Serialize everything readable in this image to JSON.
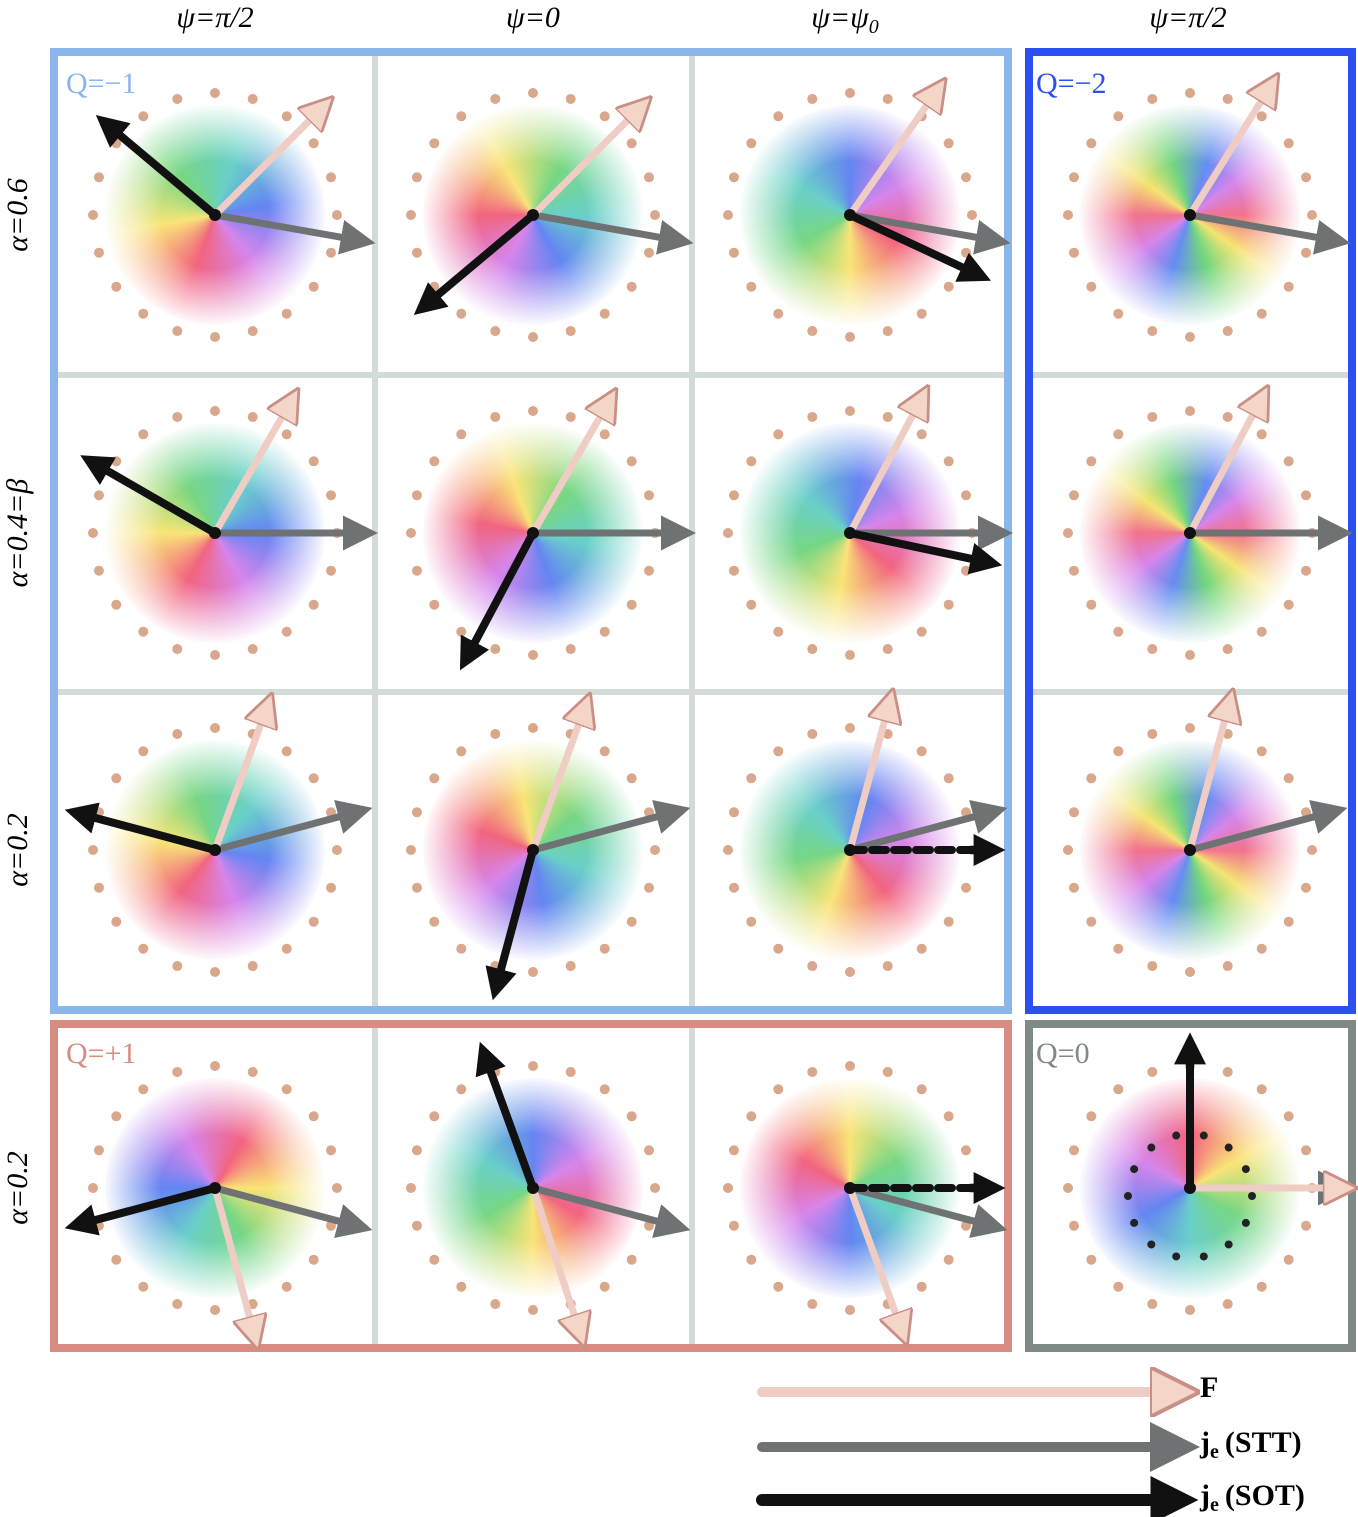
{
  "column_headers": [
    {
      "text": "ψ=π/2"
    },
    {
      "text": "ψ=0"
    },
    {
      "text": "ψ=ψ",
      "subscript": "0"
    },
    {
      "text": "ψ=π/2"
    }
  ],
  "row_labels": [
    "α=0.6",
    "α=0.4=β",
    "α=0.2",
    "α=0.2"
  ],
  "boxes": [
    {
      "label": "Q=−1"
    },
    {
      "label": "Q=−2"
    },
    {
      "label": "Q=+1"
    },
    {
      "label": "Q=0"
    }
  ],
  "legend": [
    {
      "symbol": "F"
    },
    {
      "symbol": "j",
      "subscript": "e",
      "label": "(STT)"
    },
    {
      "symbol": "j",
      "subscript": "e",
      "label": "(SOT)"
    }
  ]
}
